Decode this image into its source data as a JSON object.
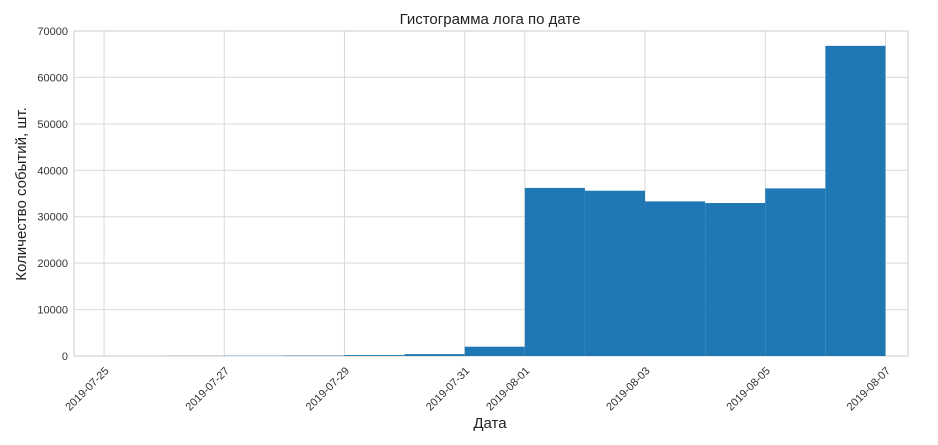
{
  "chart_data": {
    "type": "bar",
    "title": "Гистограмма лога по дате",
    "xlabel": "Дата",
    "ylabel": "Количество событий, шт.",
    "ylim": [
      0,
      70000
    ],
    "xlim": [
      "2019-07-24T12:00",
      "2019-08-07T09:00"
    ],
    "grid": true,
    "legend": "none",
    "bar_color": "#1f77b4",
    "y_ticks": [
      "0",
      "10000",
      "20000",
      "30000",
      "40000",
      "50000",
      "60000",
      "70000"
    ],
    "x_ticks": [
      "2019-07-25",
      "2019-07-27",
      "2019-07-29",
      "2019-07-31",
      "2019-08-01",
      "2019-08-03",
      "2019-08-05",
      "2019-08-07"
    ],
    "bins": [
      {
        "start": "2019-07-25T00:00",
        "end": "2019-07-26T00:00",
        "value": 10
      },
      {
        "start": "2019-07-26T00:00",
        "end": "2019-07-27T00:00",
        "value": 30
      },
      {
        "start": "2019-07-27T00:00",
        "end": "2019-07-28T00:00",
        "value": 60
      },
      {
        "start": "2019-07-28T00:00",
        "end": "2019-07-29T00:00",
        "value": 100
      },
      {
        "start": "2019-07-29T00:00",
        "end": "2019-07-30T00:00",
        "value": 200
      },
      {
        "start": "2019-07-30T00:00",
        "end": "2019-07-31T00:00",
        "value": 400
      },
      {
        "start": "2019-07-31T00:00",
        "end": "2019-08-01T00:00",
        "value": 2000
      },
      {
        "start": "2019-08-01T00:00",
        "end": "2019-08-02T00:00",
        "value": 36200
      },
      {
        "start": "2019-08-02T00:00",
        "end": "2019-08-03T00:00",
        "value": 35600
      },
      {
        "start": "2019-08-03T00:00",
        "end": "2019-08-04T00:00",
        "value": 33300
      },
      {
        "start": "2019-08-04T00:00",
        "end": "2019-08-05T00:00",
        "value": 32950
      },
      {
        "start": "2019-08-05T00:00",
        "end": "2019-08-06T00:00",
        "value": 36100
      },
      {
        "start": "2019-08-06T00:00",
        "end": "2019-08-07T00:00",
        "value": 66800
      }
    ]
  }
}
